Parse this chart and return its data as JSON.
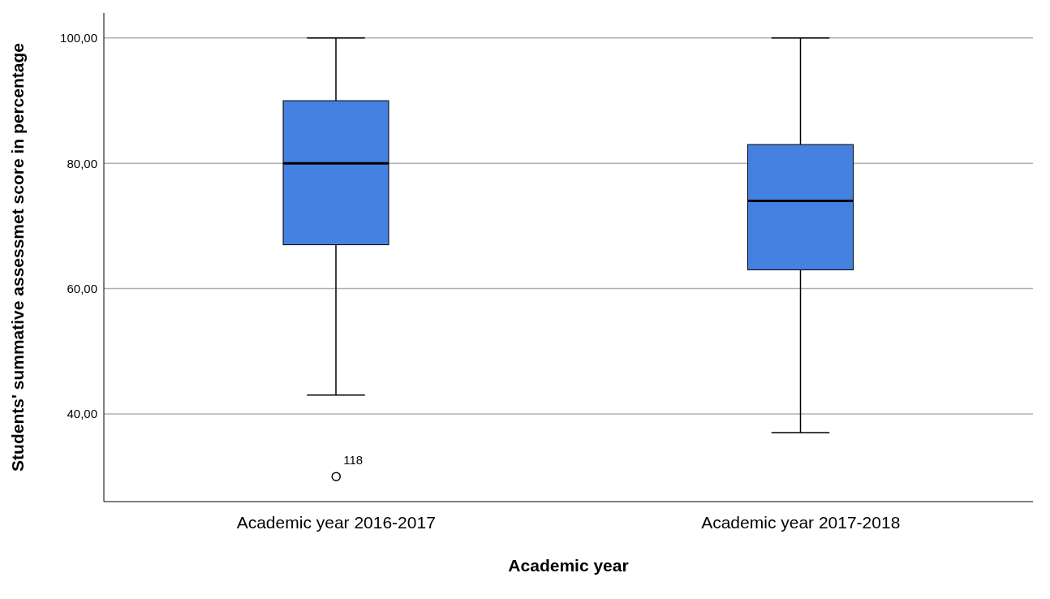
{
  "chart_data": {
    "type": "box",
    "xlabel": "Academic year",
    "ylabel": "Students' summative assessmet score in percentage",
    "categories": [
      "Academic year 2016-2017",
      "Academic year 2017-2018"
    ],
    "boxes": [
      {
        "low": 43,
        "q1": 67,
        "median": 80,
        "q3": 90,
        "high": 100,
        "outliers": [
          30
        ]
      },
      {
        "low": 37,
        "q1": 63,
        "median": 74,
        "q3": 83,
        "high": 100
      }
    ],
    "color": "#4581e1",
    "ylim": [
      26,
      104
    ],
    "yticks": [
      {
        "value": 40,
        "label": "40,00"
      },
      {
        "value": 60,
        "label": "60,00"
      },
      {
        "value": 80,
        "label": "80,00"
      },
      {
        "value": 100,
        "label": "100,00"
      }
    ],
    "grid": "y",
    "annotations": [
      "118"
    ]
  }
}
